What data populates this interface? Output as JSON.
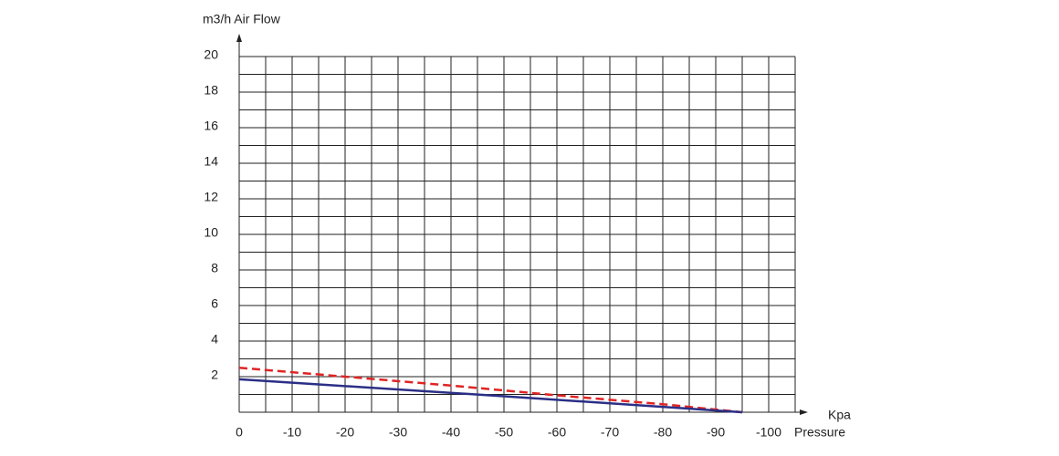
{
  "chart_data": {
    "type": "line",
    "y_label": "m3/h  Air Flow",
    "x_unit": "Kpa",
    "x_label": "Pressure",
    "xlim": [
      0,
      -105
    ],
    "xticks": [
      0,
      -10,
      -20,
      -30,
      -40,
      -50,
      -60,
      -70,
      -80,
      -90,
      -100
    ],
    "ylim": [
      0,
      20
    ],
    "yticks": [
      2,
      4,
      6,
      8,
      10,
      12,
      14,
      16,
      18,
      20
    ],
    "grid": true,
    "series": [
      {
        "color": "#e02424",
        "dash": true,
        "x": [
          0,
          -20,
          -40,
          -60,
          -80,
          -95
        ],
        "values": [
          2.5,
          2.0,
          1.5,
          0.95,
          0.45,
          0
        ]
      },
      {
        "color": "#2b2f86",
        "dash": false,
        "x": [
          0,
          -50,
          -95
        ],
        "values": [
          1.85,
          0.9,
          0
        ]
      }
    ]
  }
}
